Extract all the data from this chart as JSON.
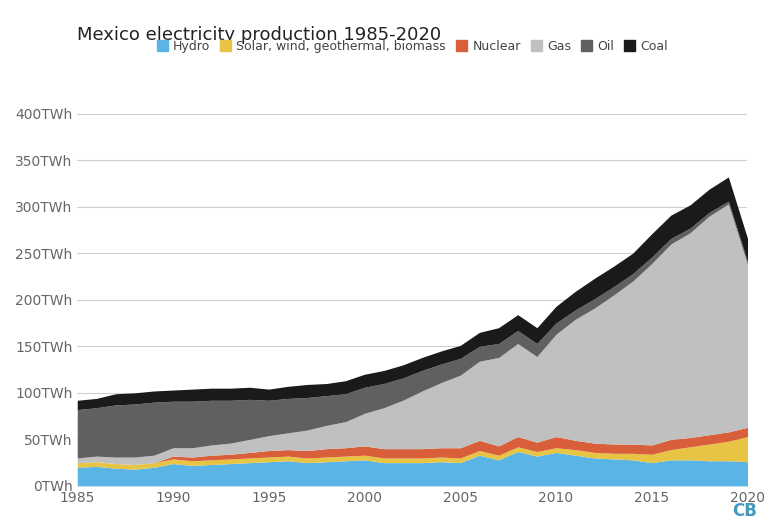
{
  "title": "Mexico electricity production 1985-2020",
  "years": [
    1985,
    1986,
    1987,
    1988,
    1989,
    1990,
    1991,
    1992,
    1993,
    1994,
    1995,
    1996,
    1997,
    1998,
    1999,
    2000,
    2001,
    2002,
    2003,
    2004,
    2005,
    2006,
    2007,
    2008,
    2009,
    2010,
    2011,
    2012,
    2013,
    2014,
    2015,
    2016,
    2017,
    2018,
    2019,
    2020
  ],
  "series": {
    "Hydro": [
      20,
      21,
      19,
      18,
      20,
      24,
      22,
      23,
      24,
      25,
      26,
      27,
      25,
      26,
      27,
      28,
      25,
      25,
      25,
      26,
      25,
      33,
      28,
      37,
      32,
      36,
      33,
      30,
      29,
      28,
      25,
      28,
      28,
      27,
      27,
      26
    ],
    "Solar, wind, geothermal, biomass": [
      5,
      5,
      5,
      5,
      5,
      5,
      5,
      5,
      5,
      5,
      5,
      5,
      5,
      5,
      5,
      5,
      5,
      5,
      5,
      5,
      5,
      5,
      5,
      5,
      5,
      5,
      6,
      6,
      6,
      7,
      9,
      11,
      14,
      18,
      21,
      27
    ],
    "Nuclear": [
      0,
      0,
      0,
      0,
      0,
      3,
      4,
      5,
      5,
      6,
      7,
      7,
      8,
      9,
      9,
      10,
      10,
      10,
      10,
      10,
      11,
      11,
      10,
      11,
      10,
      12,
      10,
      10,
      10,
      10,
      10,
      11,
      10,
      10,
      10,
      10
    ],
    "Gas": [
      5,
      6,
      7,
      8,
      8,
      9,
      10,
      11,
      12,
      14,
      16,
      18,
      22,
      25,
      28,
      35,
      44,
      52,
      62,
      70,
      78,
      85,
      95,
      100,
      92,
      110,
      130,
      145,
      160,
      175,
      195,
      210,
      220,
      235,
      245,
      175
    ],
    "Oil": [
      52,
      52,
      56,
      57,
      57,
      50,
      50,
      48,
      46,
      43,
      38,
      37,
      35,
      32,
      30,
      28,
      26,
      24,
      22,
      20,
      18,
      16,
      15,
      14,
      14,
      12,
      10,
      10,
      9,
      8,
      7,
      6,
      5,
      4,
      3,
      3
    ],
    "Coal": [
      10,
      10,
      12,
      12,
      12,
      12,
      13,
      13,
      13,
      13,
      12,
      13,
      14,
      13,
      14,
      14,
      14,
      14,
      14,
      14,
      14,
      15,
      17,
      17,
      17,
      18,
      20,
      22,
      22,
      22,
      25,
      25,
      25,
      25,
      26,
      25
    ]
  },
  "colors": {
    "Hydro": "#5ab4e5",
    "Solar, wind, geothermal, biomass": "#e8c444",
    "Nuclear": "#d95f3b",
    "Gas": "#c0c0c0",
    "Oil": "#606060",
    "Coal": "#1a1a1a"
  },
  "stack_order": [
    "Hydro",
    "Solar, wind, geothermal, biomass",
    "Nuclear",
    "Gas",
    "Oil",
    "Coal"
  ],
  "ylim": [
    0,
    420
  ],
  "yticks": [
    0,
    50,
    100,
    150,
    200,
    250,
    300,
    350,
    400
  ],
  "ytick_labels": [
    "0TWh",
    "50TWh",
    "100TWh",
    "150TWh",
    "200TWh",
    "250TWh",
    "300TWh",
    "350TWh",
    "400TWh"
  ],
  "xlim": [
    1985,
    2020
  ],
  "xticks": [
    1985,
    1990,
    1995,
    2000,
    2005,
    2010,
    2015,
    2020
  ],
  "background_color": "#ffffff",
  "grid_color": "#d0d0d0",
  "title_fontsize": 13,
  "tick_fontsize": 10,
  "legend_fontsize": 9,
  "watermark": "CB",
  "watermark_color": "#4499bb"
}
